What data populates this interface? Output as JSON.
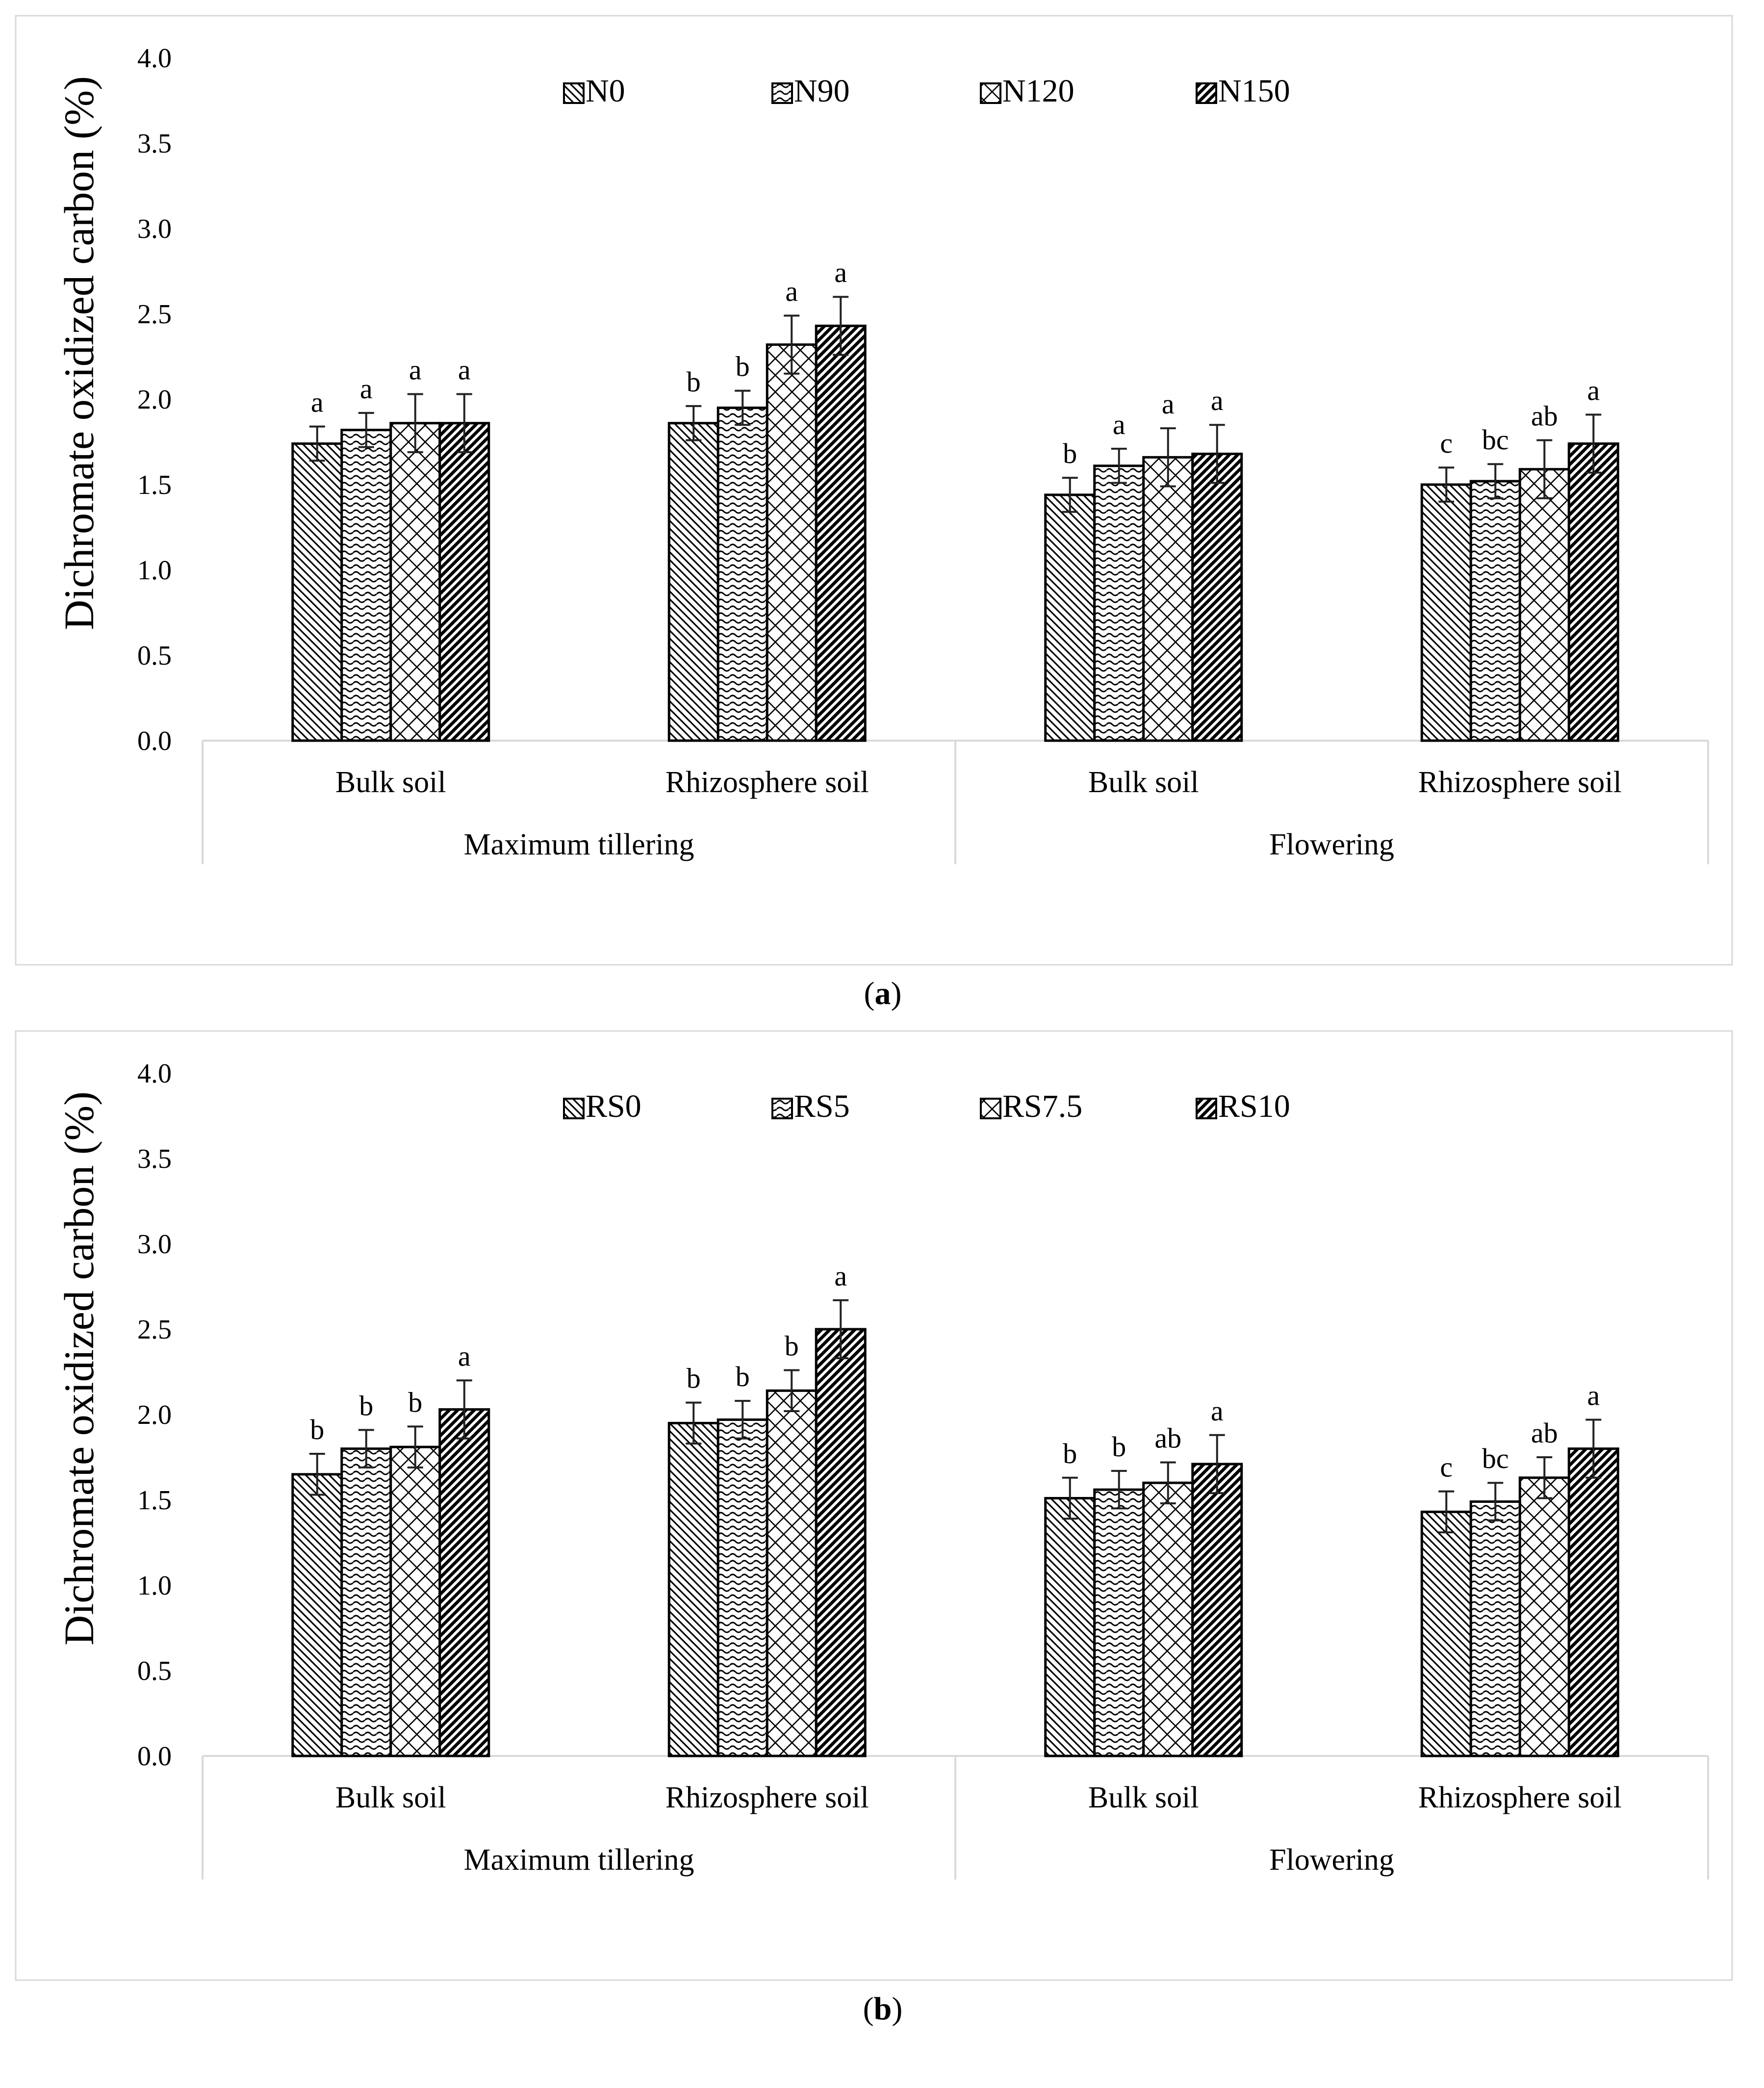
{
  "chart_data": [
    {
      "type": "bar",
      "caption_letter": "a",
      "ylabel": "Dichromate oxidized carbon (%)",
      "ylim": [
        0,
        4.0
      ],
      "yticks": [
        "0.0",
        "0.5",
        "1.0",
        "1.5",
        "2.0",
        "2.5",
        "3.0",
        "3.5",
        "4.0"
      ],
      "groups": [
        "Maximum tillering",
        "Flowering"
      ],
      "categories": [
        "Bulk soil",
        "Rhizosphere soil",
        "Bulk soil",
        "Rhizosphere soil"
      ],
      "series": [
        {
          "name": "N0",
          "values": [
            1.74,
            1.86,
            1.44,
            1.5
          ],
          "errors": [
            0.1,
            0.1,
            0.1,
            0.1
          ],
          "letters": [
            "a",
            "b",
            "b",
            "c"
          ]
        },
        {
          "name": "N90",
          "values": [
            1.82,
            1.95,
            1.61,
            1.52
          ],
          "errors": [
            0.1,
            0.1,
            0.1,
            0.1
          ],
          "letters": [
            "a",
            "b",
            "a",
            "bc"
          ]
        },
        {
          "name": "N120",
          "values": [
            1.86,
            2.32,
            1.66,
            1.59
          ],
          "errors": [
            0.17,
            0.17,
            0.17,
            0.17
          ],
          "letters": [
            "a",
            "a",
            "a",
            "ab"
          ]
        },
        {
          "name": "N150",
          "values": [
            1.86,
            2.43,
            1.68,
            1.74
          ],
          "errors": [
            0.17,
            0.17,
            0.17,
            0.17
          ],
          "letters": [
            "a",
            "a",
            "a",
            "a"
          ]
        }
      ]
    },
    {
      "type": "bar",
      "caption_letter": "b",
      "ylabel": "Dichromate oxidized carbon (%)",
      "ylim": [
        0,
        4.0
      ],
      "yticks": [
        "0.0",
        "0.5",
        "1.0",
        "1.5",
        "2.0",
        "2.5",
        "3.0",
        "3.5",
        "4.0"
      ],
      "groups": [
        "Maximum tillering",
        "Flowering"
      ],
      "categories": [
        "Bulk soil",
        "Rhizosphere soil",
        "Bulk soil",
        "Rhizosphere soil"
      ],
      "series": [
        {
          "name": "RS0",
          "values": [
            1.65,
            1.95,
            1.51,
            1.43
          ],
          "errors": [
            0.12,
            0.12,
            0.12,
            0.12
          ],
          "letters": [
            "b",
            "b",
            "b",
            "c"
          ]
        },
        {
          "name": "RS5",
          "values": [
            1.8,
            1.97,
            1.56,
            1.49
          ],
          "errors": [
            0.11,
            0.11,
            0.11,
            0.11
          ],
          "letters": [
            "b",
            "b",
            "b",
            "bc"
          ]
        },
        {
          "name": "RS7.5",
          "values": [
            1.81,
            2.14,
            1.6,
            1.63
          ],
          "errors": [
            0.12,
            0.12,
            0.12,
            0.12
          ],
          "letters": [
            "b",
            "b",
            "ab",
            "ab"
          ]
        },
        {
          "name": "RS10",
          "values": [
            2.03,
            2.5,
            1.71,
            1.8
          ],
          "errors": [
            0.17,
            0.17,
            0.17,
            0.17
          ],
          "letters": [
            "a",
            "a",
            "a",
            "a"
          ]
        }
      ]
    }
  ]
}
